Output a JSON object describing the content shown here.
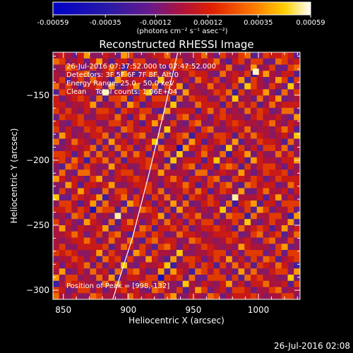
{
  "chart_data": {
    "type": "heatmap",
    "title": "Reconstructed RHESSI Image",
    "xlabel": "Heliocentric X (arcsec)",
    "ylabel": "Heliocentric Y (arcsec)",
    "xlim": [
      842,
      1032
    ],
    "ylim": [
      -307,
      -117
    ],
    "x_ticks": [
      850,
      900,
      950,
      1000
    ],
    "y_ticks": [
      -150,
      -200,
      -250,
      -300
    ],
    "colorbar": {
      "min": -0.00059,
      "max": 0.00059,
      "tick_values": [
        -0.00059,
        -0.00035,
        -0.00012,
        0.00012,
        0.00035,
        0.00059
      ],
      "tick_labels": [
        "-0.00059",
        "-0.00035",
        "-0.00012",
        "0.00012",
        "0.00035",
        "0.00059"
      ],
      "units": "(photons cm⁻² s⁻¹ asec⁻²)"
    },
    "annotations": [
      "26-Jul-2016 07:37:52.000 to 07:47:52.000",
      "Detectors: 3F 5F 6F 7F 8F, Att 0",
      "Energy Range: 25.0 - 50.0 keV",
      "Clean    Total counts: 1.06E+04"
    ],
    "peak_label": "Position of Peak = [998,-132]",
    "peak": [
      998,
      -132
    ],
    "limb_arc": {
      "x": [
        888,
        903,
        916,
        928,
        938
      ],
      "y": [
        -307,
        -260,
        -210,
        -160,
        -117
      ]
    },
    "grid": false,
    "legend": "none"
  },
  "footer_timestamp": "26-Jul-2016 02:08"
}
